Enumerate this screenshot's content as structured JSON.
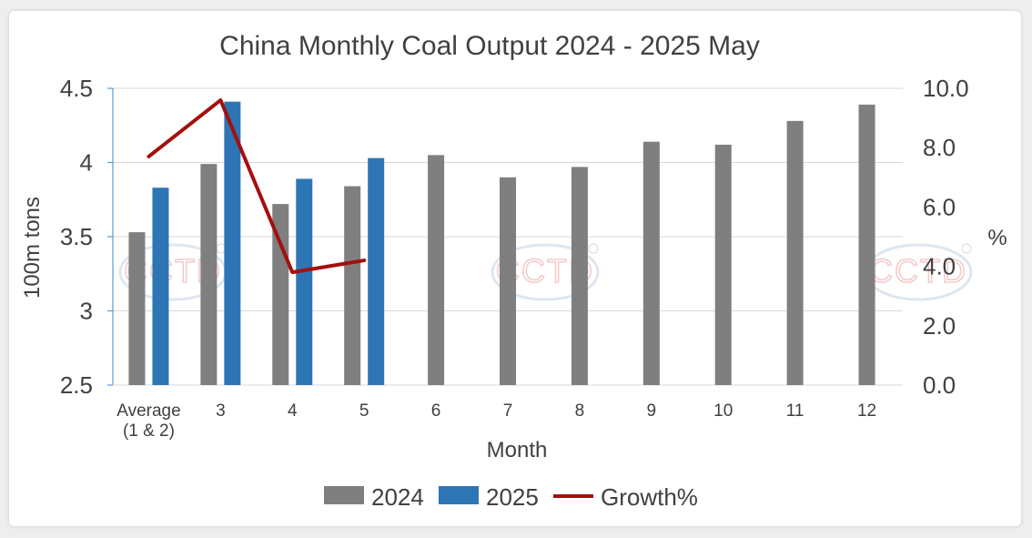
{
  "chart_data": {
    "type": "bar",
    "title": "China Monthly Coal Output 2024 - 2025 May",
    "xlabel": "Month",
    "ylabel": "100m tons",
    "y2label": "%",
    "ylim": [
      2.5,
      4.5
    ],
    "y2lim": [
      0,
      10
    ],
    "yticks": [
      "2.5",
      "3",
      "3.5",
      "4",
      "4.5"
    ],
    "y2ticks": [
      "0.0",
      "2.0",
      "4.0",
      "6.0",
      "8.0",
      "10.0"
    ],
    "categories": [
      [
        "Average",
        "(1 & 2)"
      ],
      [
        "3"
      ],
      [
        "4"
      ],
      [
        "5"
      ],
      [
        "6"
      ],
      [
        "7"
      ],
      [
        "8"
      ],
      [
        "9"
      ],
      [
        "10"
      ],
      [
        "11"
      ],
      [
        "12"
      ]
    ],
    "series": [
      {
        "name": "2024",
        "type": "bar",
        "axis": "left",
        "color": "#7f7f7f",
        "values": [
          3.53,
          3.99,
          3.72,
          3.84,
          4.05,
          3.9,
          3.97,
          4.14,
          4.12,
          4.28,
          4.39
        ]
      },
      {
        "name": "2025",
        "type": "bar",
        "axis": "left",
        "color": "#2e75b6",
        "values": [
          3.83,
          4.41,
          3.89,
          4.03,
          null,
          null,
          null,
          null,
          null,
          null,
          null
        ]
      },
      {
        "name": "Growth%",
        "type": "line",
        "axis": "right",
        "color": "#a50f0f",
        "values": [
          7.7,
          9.6,
          3.8,
          4.2,
          null,
          null,
          null,
          null,
          null,
          null,
          null
        ]
      }
    ],
    "legend_position": "bottom",
    "grid": true,
    "watermark": "CCTD"
  }
}
